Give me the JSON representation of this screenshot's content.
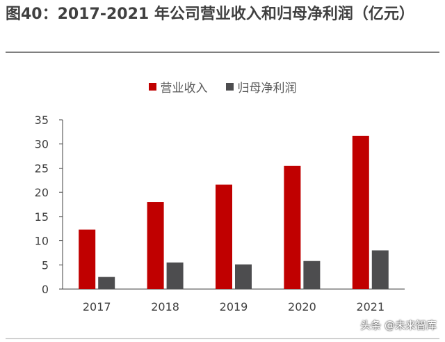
{
  "figure": {
    "title": "图40：2017-2021 年公司营业收入和归母净利润（亿元）"
  },
  "watermark": "头条 @未来智库",
  "colors": {
    "revenue": "#c00000",
    "net_profit": "#4d4d4f",
    "axis": "#404040",
    "tick_text": "#404040"
  },
  "chart_data": {
    "type": "bar",
    "categories": [
      "2017",
      "2018",
      "2019",
      "2020",
      "2021"
    ],
    "series": [
      {
        "name": "营业收入",
        "values": [
          12.3,
          18.0,
          21.6,
          25.5,
          31.7
        ]
      },
      {
        "name": "归母净利润",
        "values": [
          2.5,
          5.5,
          5.1,
          5.8,
          8.0
        ]
      }
    ],
    "ylim": [
      0,
      35
    ],
    "yticks": [
      0,
      5,
      10,
      15,
      20,
      25,
      30,
      35
    ],
    "grid": false,
    "legend_position": "top-center"
  }
}
